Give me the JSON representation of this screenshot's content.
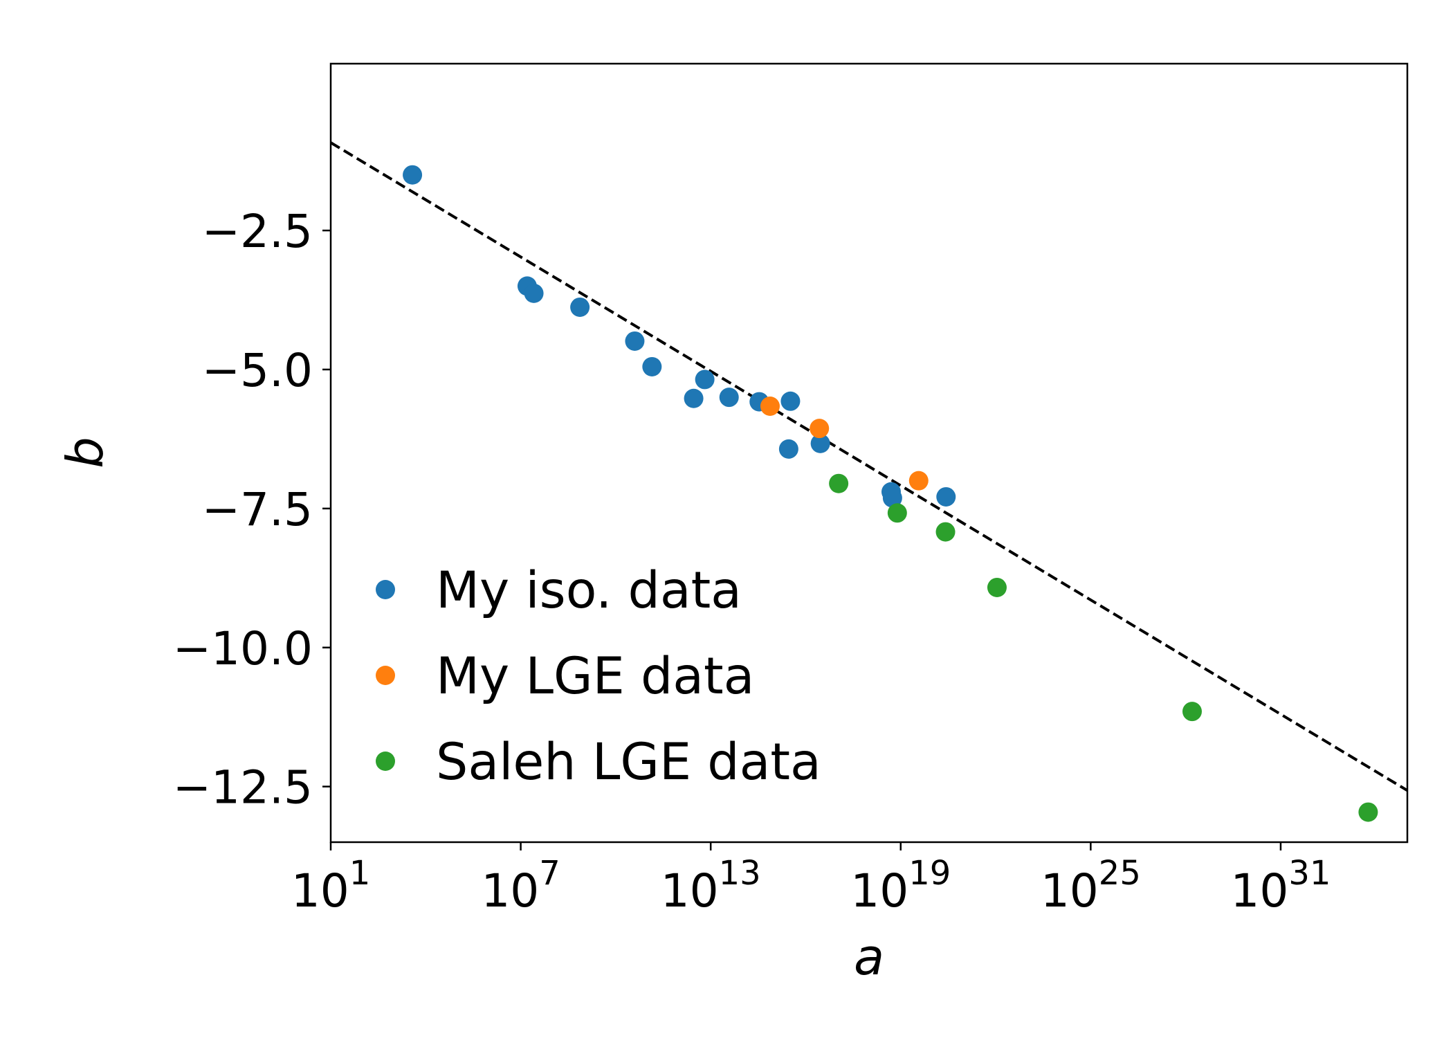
{
  "chart_data": {
    "type": "scatter",
    "xlabel": "a",
    "ylabel": "b",
    "xscale": "log",
    "xlim": [
      10.0,
      1e+35
    ],
    "ylim": [
      -13.5,
      0.5
    ],
    "xticks": [
      {
        "value": 10.0,
        "base": "10",
        "exp": "1"
      },
      {
        "value": 10000000.0,
        "base": "10",
        "exp": "7"
      },
      {
        "value": 10000000000000.0,
        "base": "10",
        "exp": "13"
      },
      {
        "value": 1e+19,
        "base": "10",
        "exp": "19"
      },
      {
        "value": 1e+25,
        "base": "10",
        "exp": "25"
      },
      {
        "value": 1e+31,
        "base": "10",
        "exp": "31"
      }
    ],
    "yticks": [
      {
        "value": -2.5,
        "label": "−2.5"
      },
      {
        "value": -5.0,
        "label": "−5.0"
      },
      {
        "value": -7.5,
        "label": "−7.5"
      },
      {
        "value": -10.0,
        "label": "−10.0"
      },
      {
        "value": -12.5,
        "label": "−12.5"
      }
    ],
    "grid": false,
    "legend_position": "lower-left",
    "fit_line": {
      "style": "dashed",
      "color": "#000000",
      "x": [
        10.0,
        1e+35
      ],
      "y": [
        -0.92,
        -12.57
      ]
    },
    "series": [
      {
        "name": "My iso. data",
        "color": "#1f77b4",
        "points": [
          {
            "x": 3800.0,
            "y": -1.5
          },
          {
            "x": 16000000.0,
            "y": -3.5
          },
          {
            "x": 26000000.0,
            "y": -3.63
          },
          {
            "x": 740000000.0,
            "y": -3.88
          },
          {
            "x": 40000000000.0,
            "y": -4.49
          },
          {
            "x": 140000000000.0,
            "y": -4.95
          },
          {
            "x": 2900000000000.0,
            "y": -5.52
          },
          {
            "x": 6500000000000.0,
            "y": -5.18
          },
          {
            "x": 38000000000000.0,
            "y": -5.5
          },
          {
            "x": 340000000000000.0,
            "y": -5.58
          },
          {
            "x": 3300000000000000.0,
            "y": -5.57
          },
          {
            "x": 2900000000000000.0,
            "y": -6.43
          },
          {
            "x": 2.9e+16,
            "y": -6.33
          },
          {
            "x": 5e+18,
            "y": -7.2
          },
          {
            "x": 5.5e+18,
            "y": -7.31
          },
          {
            "x": 2.7e+20,
            "y": -7.29
          }
        ]
      },
      {
        "name": "My LGE data",
        "color": "#ff7f0e",
        "points": [
          {
            "x": 750000000000000.0,
            "y": -5.66
          },
          {
            "x": 2.7e+16,
            "y": -6.06
          },
          {
            "x": 3.7e+19,
            "y": -7.0
          }
        ]
      },
      {
        "name": "Saleh LGE data",
        "color": "#2ca02c",
        "points": [
          {
            "x": 1.1e+17,
            "y": -7.05
          },
          {
            "x": 7.8e+18,
            "y": -7.58
          },
          {
            "x": 2.6e+20,
            "y": -7.92
          },
          {
            "x": 1.1e+22,
            "y": -8.92
          },
          {
            "x": 1.6e+28,
            "y": -11.15
          },
          {
            "x": 5.8e+33,
            "y": -12.96
          }
        ]
      }
    ]
  }
}
